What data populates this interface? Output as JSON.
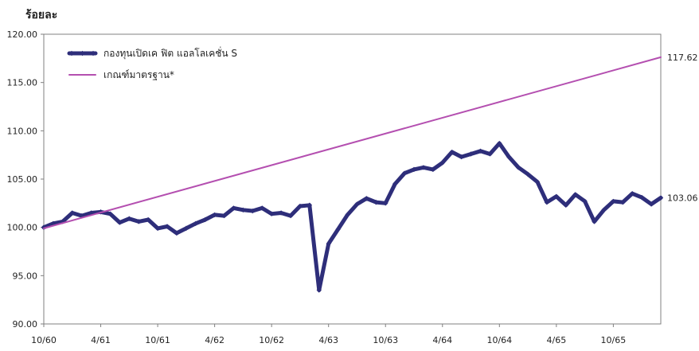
{
  "chart_data": {
    "type": "line",
    "title": "",
    "ylabel": "ร้อยละ",
    "xlabel": "",
    "ylim": [
      90,
      120
    ],
    "yticks": [
      "90.00",
      "95.00",
      "100.00",
      "105.00",
      "110.00",
      "115.00",
      "120.00"
    ],
    "xticks": [
      "10/60",
      "4/61",
      "10/61",
      "4/62",
      "10/62",
      "4/63",
      "10/63",
      "4/64",
      "10/64",
      "4/65",
      "10/65"
    ],
    "x_range": [
      "10/60",
      "3/66"
    ],
    "grid": false,
    "legend_placement": "top-left",
    "series": [
      {
        "name": "กองทุนเปิดเค ฟิต แอลโลเคชั่น S",
        "color": "#2e2e7a",
        "marker": "diamond",
        "end_label": "103.06",
        "points": [
          [
            "10/60",
            100.0
          ],
          [
            "11/60",
            100.4
          ],
          [
            "12/60",
            100.6
          ],
          [
            "1/61",
            101.5
          ],
          [
            "2/61",
            101.2
          ],
          [
            "3/61",
            101.5
          ],
          [
            "4/61",
            101.6
          ],
          [
            "5/61",
            101.4
          ],
          [
            "6/61",
            100.5
          ],
          [
            "7/61",
            100.9
          ],
          [
            "8/61",
            100.6
          ],
          [
            "9/61",
            100.8
          ],
          [
            "10/61",
            99.9
          ],
          [
            "11/61",
            100.1
          ],
          [
            "12/61",
            99.4
          ],
          [
            "1/62",
            99.9
          ],
          [
            "2/62",
            100.4
          ],
          [
            "3/62",
            100.8
          ],
          [
            "4/62",
            101.3
          ],
          [
            "5/62",
            101.2
          ],
          [
            "6/62",
            102.0
          ],
          [
            "7/62",
            101.8
          ],
          [
            "8/62",
            101.7
          ],
          [
            "9/62",
            102.0
          ],
          [
            "10/62",
            101.4
          ],
          [
            "11/62",
            101.5
          ],
          [
            "12/62",
            101.2
          ],
          [
            "1/63",
            102.2
          ],
          [
            "2/63",
            102.3
          ],
          [
            "3/63",
            93.5
          ],
          [
            "4/63",
            98.3
          ],
          [
            "5/63",
            99.8
          ],
          [
            "6/63",
            101.3
          ],
          [
            "7/63",
            102.4
          ],
          [
            "8/63",
            103.0
          ],
          [
            "9/63",
            102.6
          ],
          [
            "10/63",
            102.5
          ],
          [
            "11/63",
            104.5
          ],
          [
            "12/63",
            105.6
          ],
          [
            "1/64",
            106.0
          ],
          [
            "2/64",
            106.2
          ],
          [
            "3/64",
            106.0
          ],
          [
            "4/64",
            106.7
          ],
          [
            "5/64",
            107.8
          ],
          [
            "6/64",
            107.3
          ],
          [
            "7/64",
            107.6
          ],
          [
            "8/64",
            107.9
          ],
          [
            "9/64",
            107.6
          ],
          [
            "10/64",
            108.7
          ],
          [
            "11/64",
            107.3
          ],
          [
            "12/64",
            106.2
          ],
          [
            "1/65",
            105.5
          ],
          [
            "2/65",
            104.7
          ],
          [
            "3/65",
            102.6
          ],
          [
            "4/65",
            103.2
          ],
          [
            "5/65",
            102.3
          ],
          [
            "6/65",
            103.4
          ],
          [
            "7/65",
            102.7
          ],
          [
            "8/65",
            100.6
          ],
          [
            "9/65",
            101.8
          ],
          [
            "10/65",
            102.7
          ],
          [
            "11/65",
            102.6
          ],
          [
            "12/65",
            103.5
          ],
          [
            "1/66",
            103.1
          ],
          [
            "2/66",
            102.4
          ],
          [
            "3/66",
            103.06
          ]
        ]
      },
      {
        "name": "เกณฑ์มาตรฐาน*",
        "color": "#b44fb0",
        "marker": "none",
        "end_label": "117.62",
        "points": [
          [
            "10/60",
            99.9
          ],
          [
            "3/66",
            117.62
          ]
        ]
      }
    ]
  }
}
